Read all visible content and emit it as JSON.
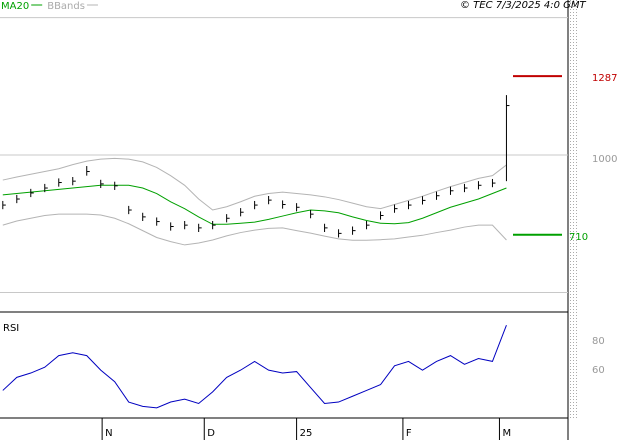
{
  "chart_data": {
    "type": "ohlc",
    "stamp": "© TEC 7/3/2025 4:0 GMT",
    "xlim": [
      -0.2,
      40.4
    ],
    "xticks": [
      {
        "value": 7.1,
        "label": "N"
      },
      {
        "value": 14.4,
        "label": "D"
      },
      {
        "value": 21,
        "label": "25"
      },
      {
        "value": 28.6,
        "label": "F"
      },
      {
        "value": 35.5,
        "label": "M"
      }
    ],
    "ylim": [
      429,
      1564
    ],
    "yticks": [
      {
        "value": 500,
        "label": null
      },
      1000,
      {
        "value": 1500,
        "label": null
      }
    ],
    "grid": true,
    "bar_color": "#000000",
    "high": [
      833,
      855,
      877,
      895,
      915,
      920,
      960,
      910,
      903,
      815,
      790,
      773,
      755,
      760,
      750,
      760,
      785,
      807,
      833,
      851,
      835,
      825,
      800,
      750,
      730,
      740,
      760,
      795,
      820,
      833,
      850,
      867,
      885,
      895,
      905,
      913,
      1218
    ],
    "low": [
      803,
      825,
      847,
      865,
      885,
      890,
      925,
      880,
      873,
      785,
      760,
      743,
      725,
      730,
      720,
      730,
      755,
      777,
      803,
      821,
      805,
      795,
      770,
      720,
      700,
      710,
      730,
      765,
      790,
      803,
      820,
      837,
      855,
      865,
      875,
      883,
      905
    ],
    "close": [
      818,
      840,
      862,
      880,
      900,
      905,
      940,
      895,
      888,
      800,
      775,
      758,
      740,
      745,
      735,
      745,
      770,
      792,
      818,
      836,
      820,
      810,
      785,
      735,
      715,
      725,
      745,
      780,
      805,
      818,
      835,
      852,
      870,
      880,
      890,
      898,
      1180
    ],
    "series": [
      {
        "name": "MA20",
        "color": "#00a000",
        "values": [
          855,
          860,
          865,
          870,
          875,
          880,
          885,
          890,
          890,
          890,
          880,
          860,
          830,
          805,
          775,
          748,
          748,
          752,
          756,
          766,
          778,
          790,
          800,
          797,
          790,
          775,
          762,
          752,
          750,
          754,
          770,
          790,
          810,
          825,
          840,
          860,
          880
        ]
      },
      {
        "name": "BBands",
        "color": "#b4b4b4",
        "values": [
          909,
          920,
          930,
          940,
          950,
          965,
          978,
          985,
          988,
          985,
          975,
          955,
          925,
          890,
          840,
          800,
          812,
          830,
          850,
          860,
          865,
          860,
          855,
          848,
          838,
          825,
          812,
          805,
          820,
          835,
          850,
          868,
          885,
          900,
          915,
          925,
          964
        ],
        "lower": [
          745,
          760,
          770,
          780,
          785,
          785,
          785,
          782,
          770,
          750,
          725,
          700,
          685,
          673,
          680,
          691,
          706,
          718,
          727,
          733,
          735,
          725,
          716,
          705,
          695,
          690,
          690,
          692,
          695,
          702,
          708,
          718,
          727,
          738,
          745,
          745,
          691
        ]
      }
    ],
    "levels": [
      {
        "value": 1287,
        "color": "#c00000"
      },
      {
        "value": 710,
        "color": "#00a000"
      }
    ],
    "rsi": {
      "title": "RSI",
      "color": "#0000c0",
      "ylim": [
        27,
        98
      ],
      "yticks": [
        60,
        80
      ],
      "values": [
        46,
        55,
        58,
        62,
        70,
        72,
        70,
        60,
        52,
        38,
        35,
        34,
        38,
        40,
        37,
        45,
        55,
        60,
        66,
        60,
        58,
        59,
        48,
        37,
        38,
        42,
        46,
        50,
        63,
        66,
        60,
        66,
        70,
        64,
        68,
        66,
        91
      ]
    }
  }
}
